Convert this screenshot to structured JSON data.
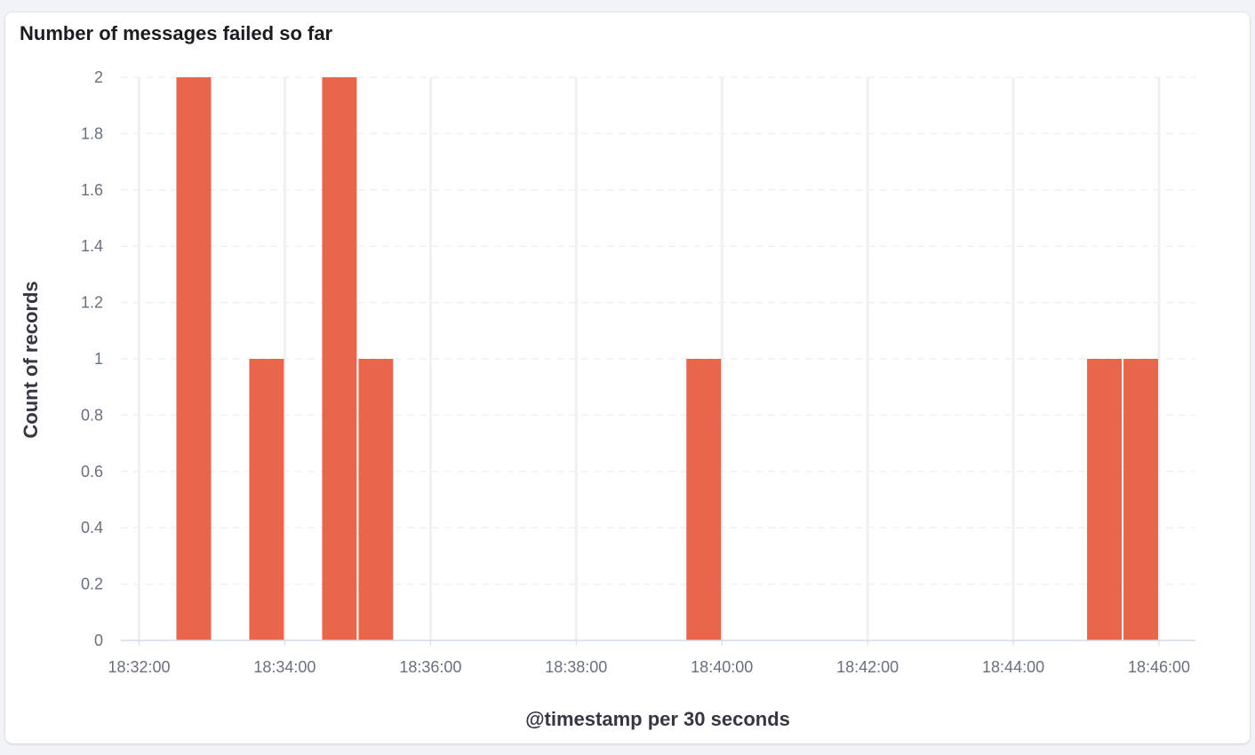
{
  "panel": {
    "title": "Number of messages failed so far"
  },
  "chart_data": {
    "type": "bar",
    "title": "Number of messages failed so far",
    "xlabel": "@timestamp per 30 seconds",
    "ylabel": "Count of records",
    "x_tick_labels": [
      "18:32:00",
      "18:34:00",
      "18:36:00",
      "18:38:00",
      "18:40:00",
      "18:42:00",
      "18:44:00",
      "18:46:00"
    ],
    "y_ticks": [
      0,
      0.2,
      0.4,
      0.6,
      0.8,
      1,
      1.2,
      1.4,
      1.6,
      1.8,
      2
    ],
    "ylim": [
      0,
      2
    ],
    "xlim": [
      "18:31:45",
      "18:46:30"
    ],
    "bucket": "30s",
    "series": [
      {
        "values": [
          {
            "x": "18:32:30",
            "y": 2
          },
          {
            "x": "18:33:30",
            "y": 1
          },
          {
            "x": "18:34:30",
            "y": 2
          },
          {
            "x": "18:35:00",
            "y": 1
          },
          {
            "x": "18:39:30",
            "y": 1
          },
          {
            "x": "18:45:00",
            "y": 1
          },
          {
            "x": "18:45:30",
            "y": 1
          }
        ]
      }
    ],
    "grid": {
      "horizontal": "dashed",
      "vertical": "solid"
    },
    "colors": {
      "bar": "#e7664c",
      "grid": "#eef0f3",
      "axis": "#d3dae6"
    }
  }
}
